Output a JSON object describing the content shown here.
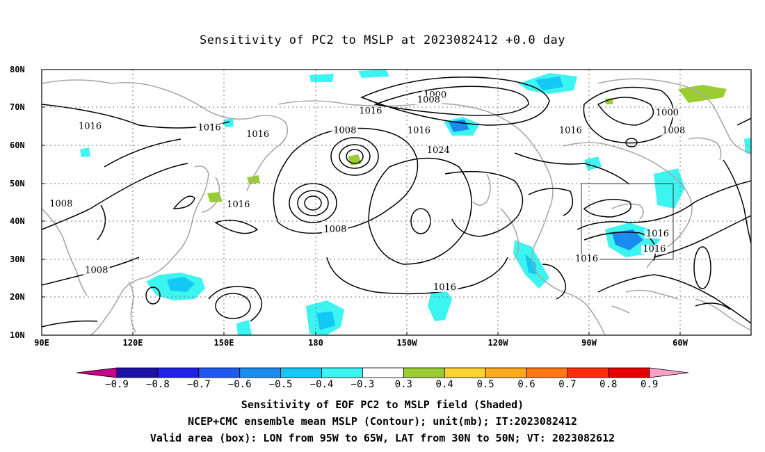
{
  "title": "Sensitivity of PC2 to MSLP at 2023082412 +0.0 day",
  "lat_labels": [
    "80N",
    "70N",
    "60N",
    "50N",
    "40N",
    "30N",
    "20N",
    "10N"
  ],
  "lon_labels": [
    "90E",
    "120E",
    "150E",
    "180",
    "150W",
    "120W",
    "90W",
    "60W"
  ],
  "contour_labels": [
    {
      "text": "1000",
      "lon": -148,
      "lat": 72.6
    },
    {
      "text": "1008",
      "lon": -150,
      "lat": 71.3
    },
    {
      "text": "1016",
      "lon": -168,
      "lat": 68.4
    },
    {
      "text": "1016",
      "lon": 105,
      "lat": 64.3
    },
    {
      "text": "1016",
      "lon": 142,
      "lat": 64.0
    },
    {
      "text": "1016",
      "lon": 157,
      "lat": 62.2
    },
    {
      "text": "1008",
      "lon": -176,
      "lat": 63.2
    },
    {
      "text": "1016",
      "lon": -153,
      "lat": 63.2
    },
    {
      "text": "1024",
      "lon": -147,
      "lat": 58.0
    },
    {
      "text": "1016",
      "lon": -106,
      "lat": 63.2
    },
    {
      "text": "1000",
      "lon": -76,
      "lat": 67.9
    },
    {
      "text": "1008",
      "lon": -74,
      "lat": 63.2
    },
    {
      "text": "1016",
      "lon": 151,
      "lat": 43.7
    },
    {
      "text": "1008",
      "lon": 96,
      "lat": 43.9
    },
    {
      "text": "1008",
      "lon": -179,
      "lat": 37.2
    },
    {
      "text": "1008",
      "lon": 107,
      "lat": 26.4
    },
    {
      "text": "1016",
      "lon": -79,
      "lat": 36.0
    },
    {
      "text": "1016",
      "lon": -80,
      "lat": 32.0
    },
    {
      "text": "1016",
      "lon": -101,
      "lat": 29.4
    },
    {
      "text": "1016",
      "lon": -145,
      "lat": 21.9
    }
  ],
  "box": {
    "lon_from": "95W",
    "lon_to": "65W",
    "lat_from": "30N",
    "lat_to": "50N"
  },
  "colorbar": {
    "labels": [
      "-0.9",
      "-0.8",
      "-0.7",
      "-0.6",
      "-0.5",
      "-0.4",
      "-0.3",
      "0.3",
      "0.4",
      "0.5",
      "0.6",
      "0.7",
      "0.8",
      "0.9"
    ],
    "colors": [
      "#c8008c",
      "#1a10a8",
      "#2020e6",
      "#1e5af0",
      "#1a8cf0",
      "#14c8f5",
      "#3cf5f0",
      "#ffffff",
      "#9acd32",
      "#ffd232",
      "#ffaa1e",
      "#ff7814",
      "#ff2d0a",
      "#e60000",
      "#ffa0c8"
    ]
  },
  "captions": [
    "Sensitivity of EOF PC2 to MSLP field (Shaded)",
    "NCEP+CMC ensemble mean MSLP (Contour); unit(mb); IT:2023082412",
    "Valid area (box): LON from 95W to 65W, LAT from 30N to 50N; VT: 2023082612"
  ]
}
